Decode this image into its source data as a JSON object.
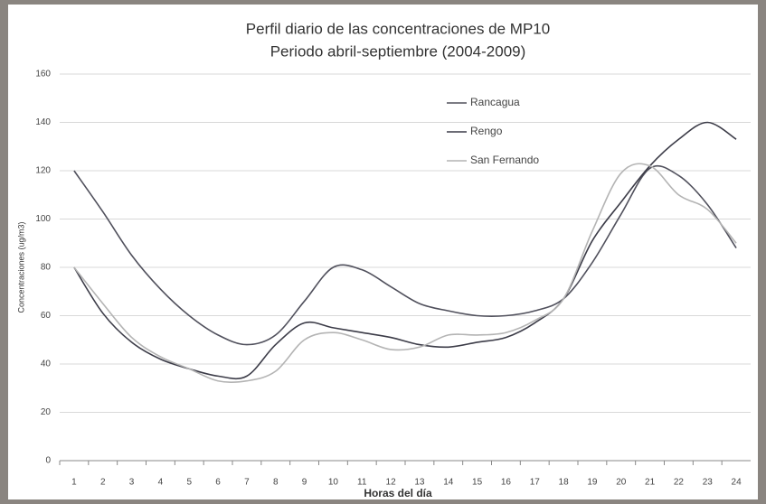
{
  "chart_data": {
    "type": "line",
    "title": "Perfil diario de las concentraciones de MP10",
    "subtitle": "Periodo abril-septiembre (2004-2009)",
    "x_label": "Horas del día",
    "y_label": "Concentraciones (ug/m3)",
    "categories": [
      "1",
      "2",
      "3",
      "4",
      "5",
      "6",
      "7",
      "8",
      "9",
      "10",
      "11",
      "12",
      "13",
      "14",
      "15",
      "16",
      "17",
      "18",
      "19",
      "20",
      "21",
      "22",
      "23",
      "24"
    ],
    "series": [
      {
        "name": "Rancagua",
        "color": "#50505c",
        "values": [
          120,
          103,
          85,
          71,
          60,
          52,
          48,
          52,
          66,
          80,
          79,
          72,
          65,
          62,
          60,
          60,
          62,
          67,
          82,
          102,
          121,
          118,
          106,
          88
        ]
      },
      {
        "name": "Rengo",
        "color": "#3c3c48",
        "values": [
          80,
          61,
          49,
          42,
          38,
          35,
          35,
          48,
          57,
          55,
          53,
          51,
          48,
          47,
          49,
          51,
          57,
          67,
          91,
          107,
          122,
          133,
          140,
          133
        ]
      },
      {
        "name": "San Fernando",
        "color": "#b4b4b4",
        "values": [
          80,
          65,
          51,
          43,
          38,
          33,
          33,
          37,
          50,
          53,
          50,
          46,
          47,
          52,
          52,
          53,
          58,
          67,
          95,
          119,
          122,
          110,
          104,
          90
        ]
      }
    ],
    "ylim": [
      0,
      160
    ],
    "yticks": [
      0,
      20,
      40,
      60,
      80,
      100,
      120,
      140,
      160
    ],
    "grid": true,
    "legend": "top-right"
  }
}
